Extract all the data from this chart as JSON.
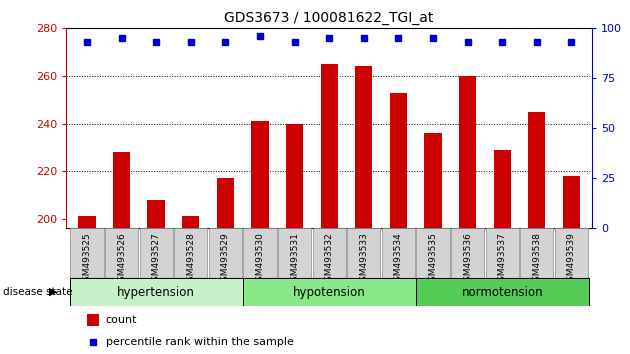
{
  "title": "GDS3673 / 100081622_TGI_at",
  "samples": [
    "GSM493525",
    "GSM493526",
    "GSM493527",
    "GSM493528",
    "GSM493529",
    "GSM493530",
    "GSM493531",
    "GSM493532",
    "GSM493533",
    "GSM493534",
    "GSM493535",
    "GSM493536",
    "GSM493537",
    "GSM493538",
    "GSM493539"
  ],
  "counts": [
    201,
    228,
    208,
    201,
    217,
    241,
    240,
    265,
    264,
    253,
    236,
    260,
    229,
    245,
    218
  ],
  "percentiles": [
    93,
    95,
    93,
    93,
    93,
    96,
    93,
    95,
    95,
    95,
    95,
    93,
    93,
    93,
    93
  ],
  "groups": [
    {
      "label": "hypertension",
      "start": 0,
      "end": 5,
      "color": "#c8f0c8"
    },
    {
      "label": "hypotension",
      "start": 5,
      "end": 10,
      "color": "#88e888"
    },
    {
      "label": "normotension",
      "start": 10,
      "end": 15,
      "color": "#55cc55"
    }
  ],
  "ylim_left": [
    196,
    280
  ],
  "ylim_right": [
    0,
    100
  ],
  "yticks_left": [
    200,
    220,
    240,
    260,
    280
  ],
  "yticks_right": [
    0,
    25,
    50,
    75,
    100
  ],
  "grid_lines": [
    220,
    240,
    260
  ],
  "bar_color": "#cc0000",
  "dot_color": "#0000cc",
  "bar_width": 0.5,
  "disease_state_label": "disease state"
}
